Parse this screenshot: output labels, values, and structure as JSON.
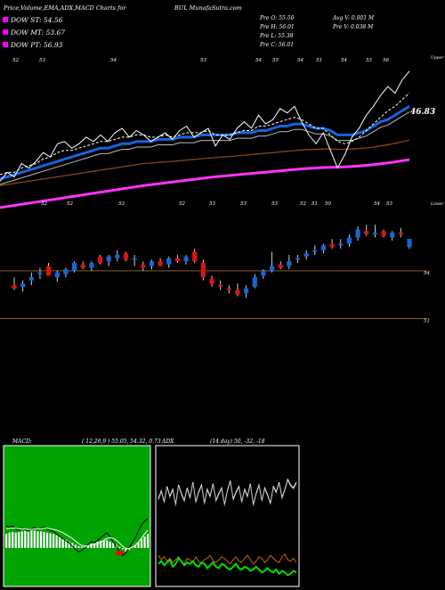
{
  "header": {
    "title": "Price,Volume,EMA,ADX,MACD Charts for",
    "symbol": "BUL MunafaSutra.com",
    "legend": [
      {
        "label": "DOW ST: 54.56",
        "color": "#ff00ff"
      },
      {
        "label": "DOW MT: 53.67",
        "color": "#ff00ff"
      },
      {
        "label": "DOW PT: 56.93",
        "color": "#ff00ff"
      }
    ],
    "stats_left": [
      "Pre  O: 55.50",
      "Pre  H: 56.01",
      "Pre  L: 55.38",
      "Pre  C: 56.01"
    ],
    "stats_right": [
      "Avg V: 0.001 M",
      "Pre  V: 0.038  M"
    ]
  },
  "colors": {
    "background": "#000000",
    "price_line": "#ffffff",
    "ema_fast": "#1565e0",
    "ema_mid": "#ffffff",
    "ema_slow": "#8b4513",
    "ema_long": "#ff33ff",
    "candle_up": "#1565e0",
    "candle_down": "#dd1111",
    "level_line": "#8b5a2b",
    "macd_bg": "#00a400",
    "adx_green": "#00dd00",
    "adx_orange": "#cc6600"
  },
  "chart_data": [
    {
      "type": "line",
      "name": "price-ema",
      "x": [
        1,
        2,
        3,
        4,
        5,
        6,
        7,
        8,
        9,
        10,
        11,
        12,
        13,
        14,
        15,
        16,
        17,
        18,
        19,
        20,
        21,
        22,
        23,
        24,
        25,
        26,
        27,
        28,
        29,
        30,
        31,
        32,
        33,
        34,
        35,
        36,
        37,
        38,
        39,
        40,
        41,
        42,
        43,
        44,
        45,
        46,
        47,
        48,
        49,
        50,
        51,
        52,
        53,
        54,
        55,
        56,
        57,
        58
      ],
      "series": [
        {
          "values": [
            53.2,
            53.6,
            53.4,
            54.0,
            53.8,
            54.1,
            54.5,
            54.3,
            54.9,
            55.0,
            54.7,
            54.9,
            55.2,
            55.0,
            55.3,
            55.0,
            55.4,
            55.6,
            55.2,
            55.5,
            55.3,
            55.0,
            55.2,
            55.4,
            55.1,
            55.5,
            55.7,
            55.2,
            55.4,
            55.6,
            54.8,
            55.3,
            55.1,
            55.6,
            55.9,
            55.6,
            56.2,
            55.8,
            56.0,
            56.5,
            56.3,
            56.6,
            55.9,
            55.3,
            54.9,
            55.4,
            54.6,
            53.8,
            54.4,
            55.2,
            55.6,
            56.2,
            56.6,
            57.1,
            57.5,
            57.2,
            57.8,
            58.2
          ]
        },
        {
          "values": [
            53.5,
            53.6,
            53.6,
            53.8,
            53.9,
            54.0,
            54.2,
            54.3,
            54.5,
            54.6,
            54.6,
            54.7,
            54.8,
            54.9,
            55.0,
            55.0,
            55.1,
            55.2,
            55.2,
            55.3,
            55.3,
            55.2,
            55.2,
            55.3,
            55.2,
            55.3,
            55.4,
            55.4,
            55.4,
            55.5,
            55.3,
            55.3,
            55.3,
            55.4,
            55.5,
            55.5,
            55.7,
            55.7,
            55.8,
            55.9,
            56.0,
            56.1,
            56.0,
            55.8,
            55.6,
            55.6,
            55.3,
            55.0,
            54.9,
            55.0,
            55.2,
            55.5,
            55.8,
            56.1,
            56.4,
            56.6,
            56.9,
            57.2
          ]
        },
        {
          "values": [
            53.3,
            53.4,
            53.5,
            53.6,
            53.7,
            53.8,
            53.9,
            54.0,
            54.1,
            54.2,
            54.3,
            54.4,
            54.5,
            54.6,
            54.7,
            54.7,
            54.8,
            54.9,
            54.9,
            55.0,
            55.0,
            55.0,
            55.1,
            55.1,
            55.1,
            55.2,
            55.2,
            55.2,
            55.3,
            55.3,
            55.3,
            55.3,
            55.3,
            55.4,
            55.4,
            55.4,
            55.5,
            55.5,
            55.6,
            55.7,
            55.7,
            55.8,
            55.8,
            55.7,
            55.6,
            55.6,
            55.5,
            55.3,
            55.3,
            55.3,
            55.4,
            55.5,
            55.7,
            55.9,
            56.0,
            56.2,
            56.4,
            56.6
          ]
        },
        {
          "values": [
            53.0,
            53.05,
            53.1,
            53.15,
            53.2,
            53.25,
            53.3,
            53.35,
            53.4,
            53.45,
            53.5,
            53.55,
            53.6,
            53.65,
            53.7,
            53.75,
            53.8,
            53.85,
            53.9,
            53.95,
            54.0,
            54.02,
            54.05,
            54.08,
            54.1,
            54.13,
            54.16,
            54.19,
            54.22,
            54.25,
            54.27,
            54.3,
            54.32,
            54.35,
            54.38,
            54.41,
            54.44,
            54.47,
            54.5,
            54.53,
            54.56,
            54.59,
            54.62,
            54.64,
            54.65,
            54.66,
            54.66,
            54.65,
            54.65,
            54.66,
            54.68,
            54.71,
            54.75,
            54.8,
            54.86,
            54.92,
            54.99,
            55.06
          ]
        },
        {
          "values": [
            52.0,
            52.05,
            52.1,
            52.15,
            52.2,
            52.25,
            52.3,
            52.35,
            52.4,
            52.45,
            52.5,
            52.55,
            52.6,
            52.65,
            52.7,
            52.75,
            52.8,
            52.85,
            52.9,
            52.95,
            53.0,
            53.04,
            53.08,
            53.12,
            53.16,
            53.2,
            53.24,
            53.28,
            53.32,
            53.36,
            53.4,
            53.43,
            53.46,
            53.49,
            53.52,
            53.55,
            53.58,
            53.61,
            53.64,
            53.67,
            53.7,
            53.73,
            53.76,
            53.78,
            53.8,
            53.82,
            53.83,
            53.84,
            53.85,
            53.87,
            53.89,
            53.92,
            53.95,
            53.99,
            54.03,
            54.08,
            54.13,
            54.18
          ]
        }
      ],
      "last_label": "46.83",
      "top_labels": [
        "52",
        "53",
        "54",
        "53",
        "54",
        "55",
        "54",
        "51",
        "54",
        "53",
        "56"
      ],
      "bottom_labels": [
        "52",
        "52",
        "53",
        "52",
        "53",
        "53",
        "53",
        "52",
        "51",
        "50",
        "54",
        "53"
      ],
      "right_top": "Upper",
      "right_bottom": "Lower"
    },
    {
      "type": "bar",
      "name": "candles",
      "candles": [
        [
          53.1,
          53.6,
          52.8,
          52.9
        ],
        [
          53.0,
          53.4,
          52.7,
          53.2
        ],
        [
          53.4,
          53.9,
          53.1,
          53.6
        ],
        [
          53.8,
          54.2,
          53.5,
          53.9
        ],
        [
          54.3,
          54.5,
          53.7,
          53.7
        ],
        [
          53.6,
          54.0,
          53.3,
          53.9
        ],
        [
          53.8,
          54.2,
          53.6,
          54.1
        ],
        [
          54.0,
          54.6,
          53.9,
          54.5
        ],
        [
          54.4,
          54.6,
          54.1,
          54.2
        ],
        [
          54.2,
          54.6,
          54.0,
          54.5
        ],
        [
          54.9,
          55.0,
          54.4,
          54.5
        ],
        [
          54.6,
          55.0,
          54.3,
          54.9
        ],
        [
          54.8,
          55.3,
          54.6,
          55.0
        ],
        [
          55.1,
          55.2,
          54.6,
          54.7
        ],
        [
          54.7,
          55.0,
          54.3,
          54.8
        ],
        [
          54.4,
          54.6,
          54.0,
          54.2
        ],
        [
          54.3,
          54.7,
          54.1,
          54.6
        ],
        [
          54.6,
          54.8,
          54.3,
          54.3
        ],
        [
          54.4,
          54.9,
          54.2,
          54.8
        ],
        [
          54.8,
          55.0,
          54.5,
          54.6
        ],
        [
          54.6,
          55.0,
          54.4,
          54.9
        ],
        [
          55.2,
          55.4,
          54.5,
          54.6
        ],
        [
          54.5,
          54.7,
          53.4,
          53.6
        ],
        [
          53.5,
          53.7,
          53.0,
          53.2
        ],
        [
          53.1,
          53.4,
          52.8,
          53.0
        ],
        [
          52.9,
          53.1,
          52.6,
          52.8
        ],
        [
          52.8,
          53.2,
          52.4,
          52.5
        ],
        [
          52.6,
          53.1,
          52.3,
          52.9
        ],
        [
          53.0,
          53.8,
          52.9,
          53.6
        ],
        [
          53.7,
          54.1,
          53.5,
          54.0
        ],
        [
          54.0,
          55.2,
          53.9,
          54.3
        ],
        [
          54.4,
          54.6,
          54.1,
          54.2
        ],
        [
          54.3,
          55.0,
          54.1,
          54.6
        ],
        [
          54.7,
          55.0,
          54.5,
          54.8
        ],
        [
          54.9,
          55.3,
          54.7,
          55.1
        ],
        [
          55.2,
          55.6,
          55.0,
          55.3
        ],
        [
          55.3,
          55.7,
          55.1,
          55.6
        ],
        [
          55.7,
          56.0,
          55.4,
          55.5
        ],
        [
          55.6,
          56.0,
          55.4,
          55.7
        ],
        [
          55.7,
          56.3,
          55.5,
          56.1
        ],
        [
          56.1,
          56.8,
          55.9,
          56.6
        ],
        [
          56.5,
          56.9,
          56.2,
          56.3
        ],
        [
          56.3,
          56.9,
          56.1,
          56.4
        ],
        [
          56.5,
          56.6,
          56.1,
          56.2
        ],
        [
          56.1,
          56.5,
          55.9,
          56.4
        ],
        [
          56.4,
          56.7,
          56.1,
          56.3
        ],
        [
          55.5,
          56.01,
          55.38,
          56.01
        ]
      ],
      "levels": [
        {
          "value": 54.0,
          "label": "54"
        },
        {
          "value": 51.0,
          "label": "51"
        }
      ]
    },
    {
      "type": "area",
      "name": "macd",
      "title": "MACD:",
      "params": "( 12,26,9 ) 55.05, 54.32, 0.73",
      "line1": [
        0.35,
        0.32,
        0.34,
        0.3,
        0.28,
        0.31,
        0.29,
        0.26,
        0.3,
        0.32,
        0.29,
        0.31,
        0.33,
        0.3,
        0.28,
        0.26,
        0.22,
        0.18,
        0.15,
        0.11,
        0.08,
        0.03,
        -0.02,
        -0.06,
        -0.04,
        0.0,
        0.05,
        0.1,
        0.08,
        0.12,
        0.16,
        0.2,
        0.24,
        0.18,
        0.1,
        0.02,
        -0.05,
        -0.12,
        -0.08,
        0.0,
        0.08,
        0.16,
        0.26,
        0.36,
        0.42,
        0.46
      ],
      "line2": [
        0.3,
        0.31,
        0.31,
        0.31,
        0.3,
        0.3,
        0.3,
        0.29,
        0.29,
        0.3,
        0.3,
        0.3,
        0.31,
        0.31,
        0.3,
        0.29,
        0.28,
        0.26,
        0.24,
        0.21,
        0.18,
        0.15,
        0.11,
        0.07,
        0.04,
        0.03,
        0.03,
        0.05,
        0.06,
        0.07,
        0.09,
        0.12,
        0.15,
        0.16,
        0.15,
        0.12,
        0.08,
        0.03,
        -0.01,
        -0.01,
        0.01,
        0.04,
        0.09,
        0.15,
        0.22,
        0.28
      ],
      "hist": [
        0.22,
        0.24,
        0.25,
        0.24,
        0.25,
        0.26,
        0.27,
        0.26,
        0.27,
        0.27,
        0.26,
        0.26,
        0.25,
        0.24,
        0.23,
        0.22,
        0.2,
        0.18,
        0.15,
        0.13,
        0.1,
        0.08,
        0.05,
        0.03,
        0.02,
        0.03,
        0.05,
        0.07,
        0.08,
        0.1,
        0.11,
        0.12,
        0.12,
        0.1,
        0.08,
        0.05,
        0.02,
        -0.02,
        -0.05,
        -0.03,
        0.01,
        0.05,
        0.09,
        0.14,
        0.18,
        0.22
      ],
      "ylim": [
        -0.6,
        1.6
      ]
    },
    {
      "type": "line",
      "name": "adx",
      "title": "ADX",
      "params": "(14 day) 50,  -32,  -18",
      "series": [
        {
          "values": [
            62,
            68,
            60,
            71,
            64,
            69,
            58,
            72,
            66,
            61,
            70,
            63,
            74,
            60,
            67,
            72,
            59,
            69,
            64,
            73,
            61,
            66,
            70,
            58,
            68,
            75,
            62,
            67,
            71,
            60,
            69,
            64,
            73,
            58,
            66,
            72,
            61,
            70,
            65,
            59,
            71,
            67,
            74,
            63,
            69,
            76,
            72,
            70,
            74
          ]
        },
        {
          "values": [
            22,
            19,
            21,
            18,
            20,
            17,
            19,
            21,
            18,
            16,
            20,
            19,
            17,
            21,
            18,
            16,
            19,
            20,
            22,
            18,
            17,
            19,
            21,
            20,
            18,
            16,
            19,
            21,
            18,
            17,
            20,
            22,
            19,
            16,
            18,
            21,
            20,
            17,
            19,
            22,
            20,
            18,
            17,
            21,
            23,
            19,
            18,
            20,
            17
          ]
        },
        {
          "values": [
            16,
            18,
            15,
            17,
            19,
            14,
            16,
            20,
            18,
            15,
            17,
            16,
            18,
            15,
            14,
            17,
            16,
            13,
            15,
            17,
            14,
            13,
            16,
            15,
            13,
            12,
            14,
            16,
            13,
            12,
            14,
            13,
            11,
            12,
            14,
            12,
            10,
            11,
            13,
            11,
            10,
            12,
            9,
            11,
            10,
            8,
            9,
            11,
            10
          ]
        }
      ],
      "ylim": [
        0,
        100
      ]
    }
  ]
}
